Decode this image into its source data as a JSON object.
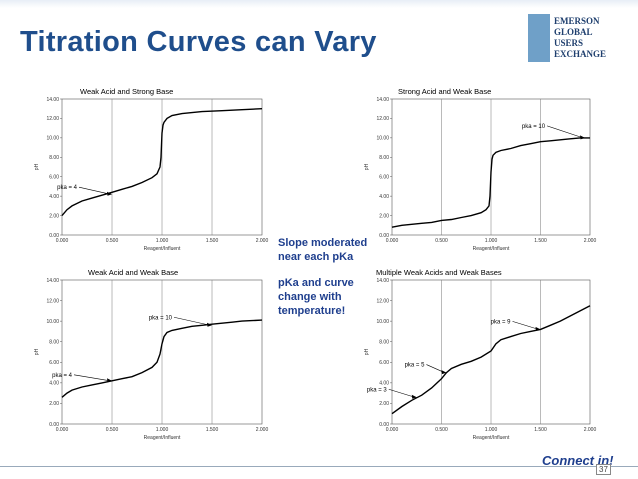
{
  "slide": {
    "title": "Titration Curves can Vary",
    "page_number": "37",
    "mid_text_1": [
      "Slope moderated",
      "near each pKa"
    ],
    "mid_text_2": [
      "pKa and curve",
      "change with",
      "temperature!"
    ],
    "logo_lines": [
      "EMERSON",
      "GLOBAL",
      "USERS",
      "EXCHANGE"
    ],
    "footer_logo": "Connect in!",
    "accent_color": "#1f4e8c"
  },
  "chart_data": [
    {
      "type": "line",
      "title": "Weak Acid and Strong Base",
      "xlabel": "Reagent/Influent",
      "ylabel": "pH",
      "xlim": [
        0,
        2.0
      ],
      "ylim": [
        0,
        14
      ],
      "xticks": [
        "0.000",
        "0.500",
        "1.000",
        "1.500",
        "2.000"
      ],
      "yticks": [
        "0.00",
        "2.00",
        "4.00",
        "6.00",
        "8.00",
        "10.00",
        "12.00",
        "14.00"
      ],
      "x": [
        0,
        0.05,
        0.1,
        0.2,
        0.3,
        0.4,
        0.5,
        0.6,
        0.7,
        0.8,
        0.9,
        0.95,
        0.98,
        0.99,
        1.0,
        1.01,
        1.02,
        1.05,
        1.1,
        1.2,
        1.4,
        1.6,
        1.8,
        2.0
      ],
      "series": [
        {
          "values": [
            2.0,
            2.6,
            3.0,
            3.5,
            3.8,
            4.1,
            4.4,
            4.7,
            5.0,
            5.4,
            5.9,
            6.3,
            7.0,
            8.0,
            10.5,
            11.3,
            11.6,
            12.0,
            12.3,
            12.5,
            12.7,
            12.8,
            12.9,
            13.0
          ]
        }
      ],
      "annotations": [
        {
          "text": "pka = 4",
          "x": 0.5,
          "y": 4.2
        }
      ]
    },
    {
      "type": "line",
      "title": "Strong Acid and Weak Base",
      "xlabel": "Reagent/Influent",
      "ylabel": "pH",
      "xlim": [
        0,
        2.0
      ],
      "ylim": [
        0,
        14
      ],
      "xticks": [
        "0.000",
        "0.500",
        "1.000",
        "1.500",
        "2.000"
      ],
      "yticks": [
        "0.00",
        "2.00",
        "4.00",
        "6.00",
        "8.00",
        "10.00",
        "12.00",
        "14.00"
      ],
      "x": [
        0,
        0.1,
        0.2,
        0.3,
        0.4,
        0.5,
        0.6,
        0.7,
        0.8,
        0.9,
        0.95,
        0.98,
        0.99,
        1.0,
        1.01,
        1.02,
        1.05,
        1.1,
        1.2,
        1.3,
        1.4,
        1.5,
        1.6,
        1.7,
        1.8,
        1.9,
        2.0
      ],
      "series": [
        {
          "values": [
            0.8,
            1.0,
            1.1,
            1.2,
            1.3,
            1.5,
            1.6,
            1.8,
            2.0,
            2.3,
            2.6,
            3.0,
            4.0,
            6.5,
            7.8,
            8.2,
            8.5,
            8.7,
            8.9,
            9.2,
            9.4,
            9.6,
            9.7,
            9.8,
            9.9,
            10.0,
            10.0
          ]
        }
      ],
      "annotations": [
        {
          "text": "pka = 10",
          "x": 1.95,
          "y": 10.0
        }
      ]
    },
    {
      "type": "line",
      "title": "Weak Acid and Weak Base",
      "xlabel": "Reagent/Influent",
      "ylabel": "pH",
      "xlim": [
        0,
        2.0
      ],
      "ylim": [
        0,
        14
      ],
      "xticks": [
        "0.000",
        "0.500",
        "1.000",
        "1.500",
        "2.000"
      ],
      "yticks": [
        "0.00",
        "2.00",
        "4.00",
        "6.00",
        "8.00",
        "10.00",
        "12.00",
        "14.00"
      ],
      "x": [
        0,
        0.05,
        0.1,
        0.2,
        0.3,
        0.4,
        0.5,
        0.6,
        0.7,
        0.8,
        0.9,
        0.95,
        0.98,
        1.0,
        1.02,
        1.05,
        1.1,
        1.2,
        1.3,
        1.4,
        1.5,
        1.6,
        1.7,
        1.8,
        1.9,
        2.0
      ],
      "series": [
        {
          "values": [
            2.6,
            3.0,
            3.3,
            3.6,
            3.8,
            4.0,
            4.2,
            4.4,
            4.6,
            5.0,
            5.5,
            6.0,
            6.8,
            7.8,
            8.5,
            8.9,
            9.1,
            9.3,
            9.5,
            9.6,
            9.7,
            9.8,
            9.9,
            10.0,
            10.05,
            10.1
          ]
        }
      ],
      "annotations": [
        {
          "text": "pka = 4",
          "x": 0.5,
          "y": 4.2
        },
        {
          "text": "pka = 10",
          "x": 1.5,
          "y": 9.6
        }
      ]
    },
    {
      "type": "line",
      "title": "Multiple Weak Acids and Weak Bases",
      "xlabel": "Reagent/Influent",
      "ylabel": "pH",
      "xlim": [
        0,
        2.0
      ],
      "ylim": [
        0,
        14
      ],
      "xticks": [
        "0.000",
        "0.500",
        "1.000",
        "1.500",
        "2.000"
      ],
      "yticks": [
        "0.00",
        "2.00",
        "4.00",
        "6.00",
        "8.00",
        "10.00",
        "12.00",
        "14.00"
      ],
      "x": [
        0,
        0.1,
        0.2,
        0.3,
        0.4,
        0.5,
        0.55,
        0.6,
        0.7,
        0.8,
        0.9,
        1.0,
        1.05,
        1.1,
        1.2,
        1.3,
        1.4,
        1.5,
        1.6,
        1.7,
        1.8,
        1.9,
        2.0
      ],
      "series": [
        {
          "values": [
            1.0,
            1.7,
            2.3,
            2.8,
            3.5,
            4.4,
            5.0,
            5.4,
            5.8,
            6.1,
            6.5,
            7.1,
            7.8,
            8.2,
            8.5,
            8.8,
            9.0,
            9.2,
            9.6,
            10.0,
            10.5,
            11.0,
            11.5
          ]
        }
      ],
      "annotations": [
        {
          "text": "pka = 3",
          "x": 0.25,
          "y": 2.6
        },
        {
          "text": "pka = 5",
          "x": 0.55,
          "y": 5.0
        },
        {
          "text": "pka = 9",
          "x": 1.5,
          "y": 9.2
        }
      ]
    }
  ]
}
